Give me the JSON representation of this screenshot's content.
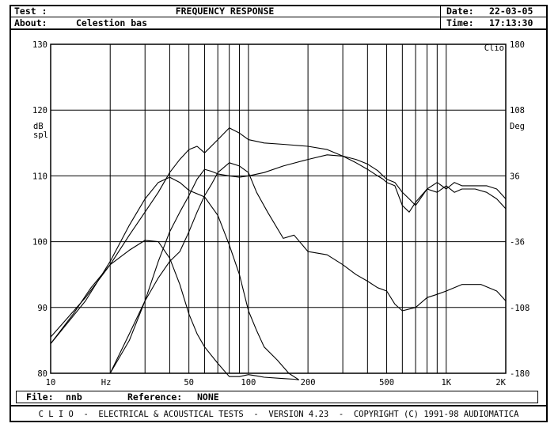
{
  "header": {
    "test_label": "Test :",
    "title": "FREQUENCY RESPONSE",
    "about_label": "About:",
    "about_value": "Celestion bas",
    "date_label": "Date:",
    "date_value": "22-03-05",
    "time_label": "Time:",
    "time_value": "17:13:30"
  },
  "footer": {
    "file_label": "File:",
    "file_value": "nnb",
    "reference_label": "Reference:",
    "reference_value": "NONE",
    "copyright": "C L I O  -  ELECTRICAL & ACOUSTICAL TESTS  -  VERSION 4.23  -  COPYRIGHT (C) 1991-98 AUDIOMATICA"
  },
  "chart_data": {
    "type": "line",
    "title": "FREQUENCY RESPONSE",
    "xlabel": "Hz",
    "ylabel": "dB spl",
    "y2label": "Deg",
    "corner_label": "Clio",
    "x_scale": "log",
    "xlim": [
      10,
      2000
    ],
    "ylim": [
      80,
      130
    ],
    "y2lim": [
      -180,
      180
    ],
    "grid": true,
    "x_ticks": [
      {
        "value": 10,
        "label": "10"
      },
      {
        "value": 50,
        "label": "50"
      },
      {
        "value": 100,
        "label": "100"
      },
      {
        "value": 200,
        "label": "200"
      },
      {
        "value": 500,
        "label": "500"
      },
      {
        "value": 1000,
        "label": "1K"
      },
      {
        "value": 2000,
        "label": "2K"
      }
    ],
    "y_ticks": [
      80,
      90,
      100,
      110,
      120,
      130
    ],
    "y2_ticks": [
      -180,
      -108,
      -36,
      36,
      108,
      180
    ],
    "series": [
      {
        "x": [
          10,
          13,
          16,
          20,
          25,
          30,
          35,
          40,
          45,
          50,
          55,
          60,
          70,
          80,
          90,
          100,
          110,
          120,
          150,
          170,
          180
        ],
        "y": [
          84.5,
          89,
          93,
          96.5,
          98.7,
          100.2,
          100,
          97.5,
          93.5,
          89,
          86,
          84,
          81.5,
          79.5,
          79.5,
          79.8,
          79.6,
          79.4,
          79.2,
          79.1,
          79
        ]
      },
      {
        "x": [
          10,
          15,
          20,
          25,
          30,
          35,
          40,
          45,
          50,
          60,
          70,
          80,
          90,
          100,
          110,
          120,
          140,
          160,
          180
        ],
        "y": [
          84.5,
          91,
          97,
          102.5,
          106.5,
          109,
          109.8,
          109,
          107.8,
          106.8,
          104,
          99.5,
          95,
          89.5,
          86.5,
          84,
          82,
          80,
          79
        ]
      },
      {
        "x": [
          20,
          25,
          30,
          35,
          40,
          45,
          50,
          55,
          60,
          65,
          70,
          80,
          90,
          100,
          110,
          125,
          150,
          170,
          200,
          250,
          300,
          350,
          400,
          450,
          500,
          550,
          600,
          700,
          800,
          900,
          1000,
          1200,
          1500,
          1800,
          2000
        ],
        "y": [
          80,
          86,
          91,
          94.5,
          97,
          98.5,
          101.5,
          104.5,
          107,
          108.7,
          110.5,
          112,
          111.5,
          110.5,
          107.5,
          104.5,
          100.5,
          101,
          98.5,
          98,
          96.5,
          95,
          94,
          93,
          92.5,
          90.5,
          89.5,
          90,
          91.5,
          92,
          92.5,
          93.5,
          93.5,
          92.5,
          91
        ]
      },
      {
        "x": [
          10,
          15,
          20,
          25,
          30,
          35,
          40,
          45,
          50,
          55,
          60,
          70,
          80,
          90,
          100,
          120,
          150,
          200,
          250,
          300,
          350,
          400,
          450,
          480,
          500,
          550,
          600,
          650,
          700,
          800,
          900,
          1000,
          1100,
          1200,
          1400,
          1600,
          1800,
          2000
        ],
        "y": [
          85.5,
          91.5,
          96.5,
          101,
          104.5,
          107.5,
          110.5,
          112.5,
          114,
          114.5,
          113.5,
          115.5,
          117.3,
          116.5,
          115.5,
          115,
          114.8,
          114.5,
          114,
          113,
          112,
          111,
          110,
          109.5,
          109,
          108.5,
          105.5,
          104.5,
          106,
          108,
          107.5,
          108.5,
          107.5,
          108,
          108,
          107.5,
          106.5,
          105
        ]
      },
      {
        "x": [
          20,
          25,
          30,
          35,
          40,
          45,
          50,
          55,
          60,
          65,
          70,
          80,
          90,
          100,
          120,
          150,
          200,
          250,
          300,
          350,
          400,
          450,
          480,
          500,
          550,
          600,
          650,
          700,
          800,
          900,
          1000,
          1100,
          1200,
          1400,
          1600,
          1800,
          2000
        ],
        "y": [
          80,
          85,
          91,
          97,
          101.5,
          104.5,
          107,
          109.5,
          111,
          110.7,
          110.3,
          110,
          109.8,
          110,
          110.5,
          111.5,
          112.5,
          113.2,
          113,
          112.5,
          111.8,
          110.8,
          110,
          109.5,
          109,
          107.5,
          106.5,
          105.5,
          108,
          109,
          108,
          109,
          108.5,
          108.5,
          108.5,
          108,
          106.5
        ]
      }
    ]
  }
}
